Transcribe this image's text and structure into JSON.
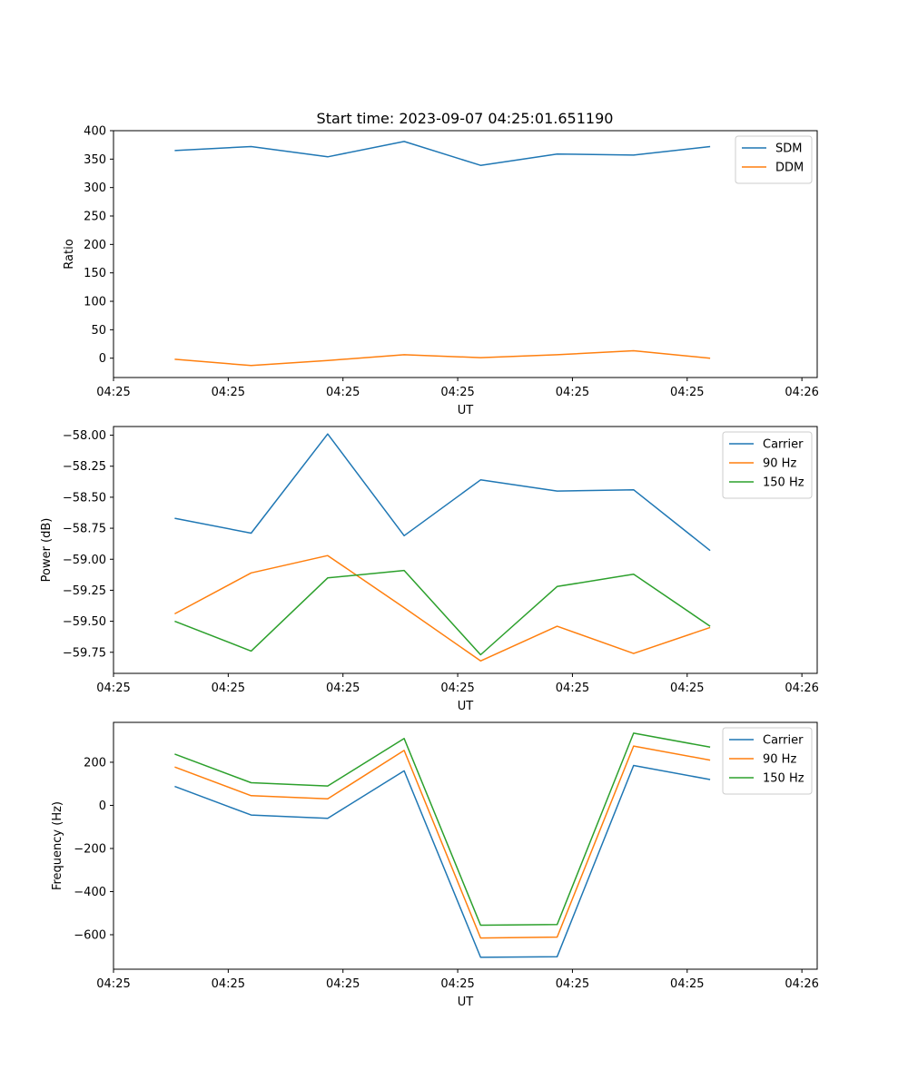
{
  "figure_title": "Start time: 2023-09-07 04:25:01.651190",
  "chart_data": [
    {
      "type": "line",
      "title": "Start time: 2023-09-07 04:25:01.651190",
      "xlabel": "UT",
      "ylabel": "Ratio",
      "x": [
        1,
        2,
        3,
        4,
        5,
        6,
        7,
        8
      ],
      "xlim": [
        0.2,
        9.4
      ],
      "xticks": [
        {
          "value": 0.2,
          "label": "04:25"
        },
        {
          "value": 1.7,
          "label": "04:25"
        },
        {
          "value": 3.2,
          "label": "04:25"
        },
        {
          "value": 4.7,
          "label": "04:25"
        },
        {
          "value": 6.2,
          "label": "04:25"
        },
        {
          "value": 7.7,
          "label": "04:25"
        },
        {
          "value": 9.2,
          "label": "04:26"
        }
      ],
      "ylim": [
        -34,
        400
      ],
      "yticks": [
        {
          "value": 0,
          "label": "0"
        },
        {
          "value": 50,
          "label": "50"
        },
        {
          "value": 100,
          "label": "100"
        },
        {
          "value": 150,
          "label": "150"
        },
        {
          "value": 200,
          "label": "200"
        },
        {
          "value": 250,
          "label": "250"
        },
        {
          "value": 300,
          "label": "300"
        },
        {
          "value": 350,
          "label": "350"
        },
        {
          "value": 400,
          "label": "400"
        }
      ],
      "legend_position": "top-right",
      "series": [
        {
          "name": "SDM",
          "color": "#1f77b4",
          "values": [
            365,
            372,
            354,
            381,
            339,
            359,
            357,
            372
          ]
        },
        {
          "name": "DDM",
          "color": "#ff7f0e",
          "values": [
            -2,
            -13,
            -4,
            6,
            1,
            6,
            13,
            0
          ]
        }
      ]
    },
    {
      "type": "line",
      "title": "",
      "xlabel": "UT",
      "ylabel": "Power (dB)",
      "x": [
        1,
        2,
        3,
        4,
        5,
        6,
        7,
        8
      ],
      "xlim": [
        0.2,
        9.4
      ],
      "xticks": [
        {
          "value": 0.2,
          "label": "04:25"
        },
        {
          "value": 1.7,
          "label": "04:25"
        },
        {
          "value": 3.2,
          "label": "04:25"
        },
        {
          "value": 4.7,
          "label": "04:25"
        },
        {
          "value": 6.2,
          "label": "04:25"
        },
        {
          "value": 7.7,
          "label": "04:25"
        },
        {
          "value": 9.2,
          "label": "04:26"
        }
      ],
      "ylim": [
        -59.92,
        -57.93
      ],
      "yticks": [
        {
          "value": -58.0,
          "label": "−58.00"
        },
        {
          "value": -58.25,
          "label": "−58.25"
        },
        {
          "value": -58.5,
          "label": "−58.50"
        },
        {
          "value": -58.75,
          "label": "−58.75"
        },
        {
          "value": -59.0,
          "label": "−59.00"
        },
        {
          "value": -59.25,
          "label": "−59.25"
        },
        {
          "value": -59.5,
          "label": "−59.50"
        },
        {
          "value": -59.75,
          "label": "−59.75"
        }
      ],
      "legend_position": "top-right",
      "series": [
        {
          "name": "Carrier",
          "color": "#1f77b4",
          "values": [
            -58.67,
            -58.79,
            -57.99,
            -58.81,
            -58.36,
            -58.45,
            -58.44,
            -58.93
          ]
        },
        {
          "name": "90 Hz",
          "color": "#ff7f0e",
          "values": [
            -59.44,
            -59.11,
            -58.97,
            -59.39,
            -59.82,
            -59.54,
            -59.76,
            -59.55
          ]
        },
        {
          "name": "150 Hz",
          "color": "#2ca02c",
          "values": [
            -59.5,
            -59.74,
            -59.15,
            -59.09,
            -59.77,
            -59.22,
            -59.12,
            -59.54
          ]
        }
      ]
    },
    {
      "type": "line",
      "title": "",
      "xlabel": "UT",
      "ylabel": "Frequency (Hz)",
      "x": [
        1,
        2,
        3,
        4,
        5,
        6,
        7,
        8
      ],
      "xlim": [
        0.2,
        9.4
      ],
      "xticks": [
        {
          "value": 0.2,
          "label": "04:25"
        },
        {
          "value": 1.7,
          "label": "04:25"
        },
        {
          "value": 3.2,
          "label": "04:25"
        },
        {
          "value": 4.7,
          "label": "04:25"
        },
        {
          "value": 6.2,
          "label": "04:25"
        },
        {
          "value": 7.7,
          "label": "04:25"
        },
        {
          "value": 9.2,
          "label": "04:26"
        }
      ],
      "ylim": [
        -760,
        385
      ],
      "yticks": [
        {
          "value": 200,
          "label": "200"
        },
        {
          "value": 0,
          "label": "0"
        },
        {
          "value": -200,
          "label": "−200"
        },
        {
          "value": -400,
          "label": "−400"
        },
        {
          "value": -600,
          "label": "−600"
        }
      ],
      "legend_position": "top-right",
      "series": [
        {
          "name": "Carrier",
          "color": "#1f77b4",
          "values": [
            88,
            -45,
            -60,
            160,
            -705,
            -702,
            185,
            120
          ]
        },
        {
          "name": "90 Hz",
          "color": "#ff7f0e",
          "values": [
            178,
            45,
            30,
            255,
            -615,
            -611,
            275,
            210
          ]
        },
        {
          "name": "150 Hz",
          "color": "#2ca02c",
          "values": [
            238,
            105,
            90,
            310,
            -556,
            -553,
            335,
            270
          ]
        }
      ]
    }
  ]
}
